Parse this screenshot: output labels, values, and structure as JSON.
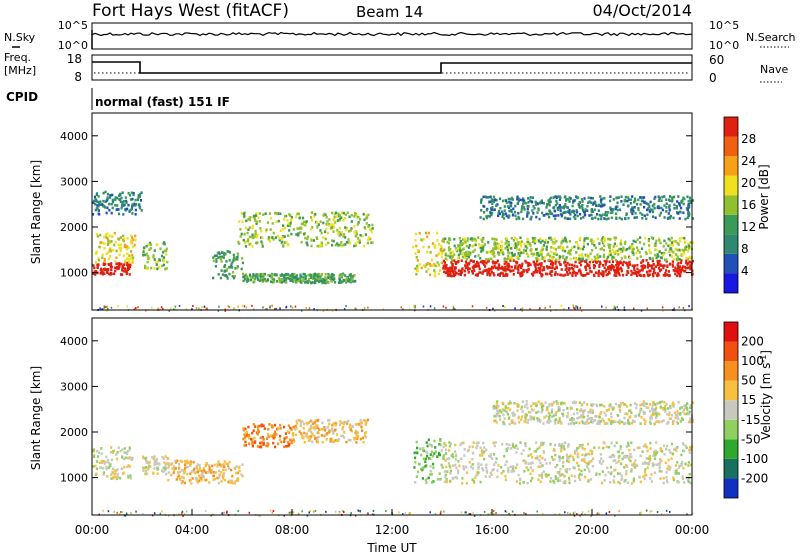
{
  "header": {
    "title": "Fort Hays West (fitACF)",
    "beam": "Beam 14",
    "date": "04/Oct/2014"
  },
  "noise_panel": {
    "left_label": "N.Sky",
    "left_ticks": [
      "10^5",
      "10^0"
    ],
    "right_label": "N.Search",
    "right_ticks": [
      "10^5",
      "10^0"
    ]
  },
  "freq_panel": {
    "left_label_1": "Freq.",
    "left_label_2": "[MHz]",
    "left_ticks": [
      "18",
      "8"
    ],
    "right_label": "Nave",
    "right_ticks": [
      "60",
      "0"
    ],
    "cpid_label": "CPID",
    "cpid_text": "normal (fast) 151 IF"
  },
  "chart_data": [
    {
      "type": "heatmap",
      "name": "power",
      "ylabel": "Slant Range [km]",
      "ylim": [
        180,
        4500
      ],
      "yticks": [
        1000,
        2000,
        3000,
        4000
      ],
      "colorbar": {
        "label": "Power [dB]",
        "ticks": [
          "28",
          "24",
          "20",
          "16",
          "12",
          "8",
          "4"
        ],
        "colors": [
          "#1818e0",
          "#2050b8",
          "#2f8870",
          "#3a9a58",
          "#90c030",
          "#f0e020",
          "#f8a018",
          "#f06010",
          "#e02010"
        ]
      },
      "bands": [
        {
          "t0": 0.0,
          "t1": 1.5,
          "r0": 980,
          "r1": 1250,
          "level": 9
        },
        {
          "t0": 0.1,
          "t1": 1.7,
          "r0": 1250,
          "r1": 1900,
          "level": 5
        },
        {
          "t0": 0.0,
          "t1": 2.0,
          "r0": 2300,
          "r1": 2800,
          "level": 2
        },
        {
          "t0": 2.0,
          "t1": 3.0,
          "r0": 1100,
          "r1": 1700,
          "level": 4
        },
        {
          "t0": 4.8,
          "t1": 6.0,
          "r0": 900,
          "r1": 1500,
          "level": 3
        },
        {
          "t0": 5.8,
          "t1": 11.2,
          "r0": 1600,
          "r1": 2350,
          "level": 4
        },
        {
          "t0": 6.0,
          "t1": 10.5,
          "r0": 800,
          "r1": 1000,
          "level": 3
        },
        {
          "t0": 12.8,
          "t1": 14.0,
          "r0": 950,
          "r1": 1900,
          "level": 5
        },
        {
          "t0": 14.0,
          "t1": 24.0,
          "r0": 950,
          "r1": 1300,
          "level": 9
        },
        {
          "t0": 14.0,
          "t1": 24.0,
          "r0": 1300,
          "r1": 1800,
          "level": 4
        },
        {
          "t0": 15.5,
          "t1": 24.0,
          "r0": 2200,
          "r1": 2700,
          "level": 2
        }
      ]
    },
    {
      "type": "heatmap",
      "name": "velocity",
      "xlabel": "Time UT",
      "ylabel": "Slant Range [km]",
      "ylim": [
        180,
        4500
      ],
      "yticks": [
        1000,
        2000,
        3000,
        4000
      ],
      "xticks": [
        "00:00",
        "04:00",
        "08:00",
        "12:00",
        "16:00",
        "20:00",
        "00:00"
      ],
      "colorbar": {
        "label": "Velocity [m s",
        "label_sup": "-1",
        "label_end": "]",
        "ticks": [
          "200",
          "100",
          "50",
          "15",
          "-15",
          "-50",
          "-100",
          "-200"
        ],
        "colors": [
          "#1030c0",
          "#1a7060",
          "#30a830",
          "#90d060",
          "#c8c8c0",
          "#f8c040",
          "#f89020",
          "#f05010",
          "#e01010"
        ]
      },
      "bands": [
        {
          "t0": 0.0,
          "t1": 1.6,
          "r0": 1000,
          "r1": 1700,
          "level": 4
        },
        {
          "t0": 2.0,
          "t1": 3.0,
          "r0": 1100,
          "r1": 1500,
          "level": 4
        },
        {
          "t0": 3.0,
          "t1": 6.0,
          "r0": 900,
          "r1": 1400,
          "level": 5
        },
        {
          "t0": 6.0,
          "t1": 8.0,
          "r0": 1700,
          "r1": 2200,
          "level": 6
        },
        {
          "t0": 8.0,
          "t1": 11.0,
          "r0": 1800,
          "r1": 2300,
          "level": 5
        },
        {
          "t0": 12.8,
          "t1": 14.0,
          "r0": 900,
          "r1": 1900,
          "level": 3
        },
        {
          "t0": 14.0,
          "t1": 24.0,
          "r0": 900,
          "r1": 1800,
          "level": 4
        },
        {
          "t0": 16.0,
          "t1": 24.0,
          "r0": 2200,
          "r1": 2700,
          "level": 4
        }
      ]
    }
  ]
}
